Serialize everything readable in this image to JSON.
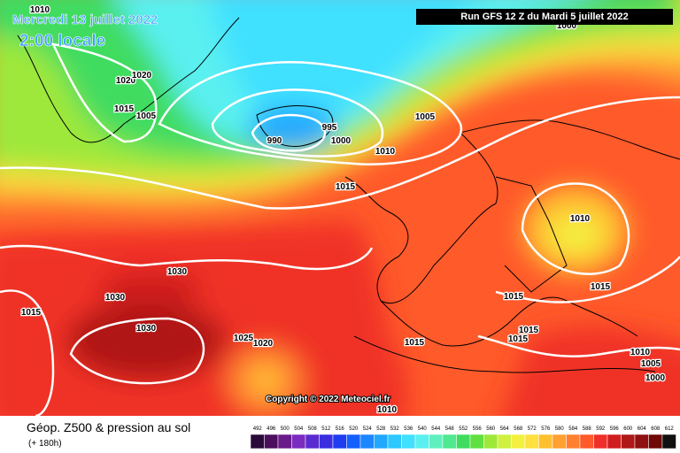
{
  "map": {
    "date_title": "Mercredi 13 juillet 2022",
    "time_label": "2:00 locale",
    "run_label": "Run GFS 12 Z du Mardi 5 juillet 2022",
    "copyright": "Copyright © 2022 Meteociel.fr",
    "isobar_labels": [
      1010,
      1020,
      1020,
      1015,
      1005,
      995,
      990,
      1000,
      1005,
      1010,
      1015,
      1000,
      1010,
      1015,
      1030,
      1030,
      1015,
      1030,
      1025,
      1020,
      1015,
      1015,
      1015,
      1015,
      1010,
      1005,
      1010,
      1000
    ]
  },
  "legend": {
    "title": "Géop. Z500 & pression au sol",
    "lead_time": "(+ 180h)",
    "scale": {
      "values": [
        492,
        496,
        500,
        504,
        508,
        512,
        516,
        520,
        524,
        528,
        532,
        536,
        540,
        544,
        548,
        552,
        556,
        560,
        564,
        568,
        572,
        576,
        580,
        584,
        588,
        592,
        596,
        600,
        604,
        608,
        612
      ],
      "colors": [
        "#2a0a3a",
        "#4b0f5e",
        "#6a1b8a",
        "#7b2cbf",
        "#5a2cd0",
        "#3a2ee0",
        "#1f3df0",
        "#1460ff",
        "#1c86ff",
        "#20a8ff",
        "#2cc8ff",
        "#40e0ff",
        "#5af0f0",
        "#60f0c0",
        "#50e890",
        "#40dc60",
        "#60e040",
        "#9ee83a",
        "#d0f040",
        "#f4f040",
        "#ffe040",
        "#ffc030",
        "#ffa030",
        "#ff8030",
        "#ff5a2a",
        "#f03028",
        "#d01e1e",
        "#b01818",
        "#901010",
        "#700808",
        "#101010"
      ]
    }
  }
}
